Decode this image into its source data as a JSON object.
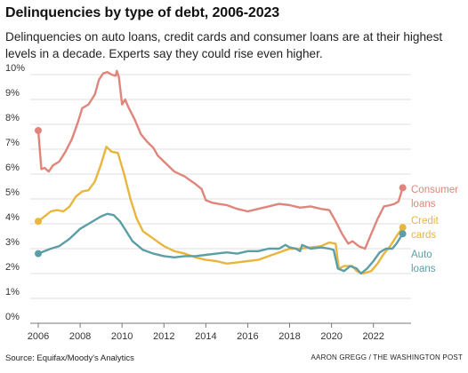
{
  "header": {
    "title": "Delinquencies by type of debt, 2006-2023",
    "subtitle": "Delinquencies on auto loans, credit cards and consumer loans are at their highest levels in a decade. Experts say they could rise even higher."
  },
  "footer": {
    "source": "Source: Equifax/Moody's Analytics",
    "credit": "AARON GREGG / THE WASHINGTON POST"
  },
  "chart_data": {
    "type": "line",
    "title": "Delinquencies by type of debt, 2006-2023",
    "xlabel": "",
    "ylabel": "",
    "xlim": [
      2006,
      2023.5
    ],
    "ylim": [
      0,
      10
    ],
    "x_ticks": [
      "2006",
      "2008",
      "2010",
      "2012",
      "2014",
      "2016",
      "2018",
      "2020",
      "2022"
    ],
    "y_ticks": [
      "0%",
      "1%",
      "2%",
      "3%",
      "4%",
      "5%",
      "6%",
      "7%",
      "8%",
      "9%",
      "10%"
    ],
    "grid": true,
    "legend": "direct labels at right end of lines",
    "series": [
      {
        "name": "Consumer loans",
        "label_lines": [
          "Consumer",
          "loans"
        ],
        "color": "#e0857b",
        "points": [
          [
            2006.0,
            7.75
          ],
          [
            2006.15,
            6.2
          ],
          [
            2006.3,
            6.25
          ],
          [
            2006.5,
            6.1
          ],
          [
            2006.7,
            6.35
          ],
          [
            2007.0,
            6.5
          ],
          [
            2007.3,
            6.9
          ],
          [
            2007.6,
            7.4
          ],
          [
            2007.9,
            8.1
          ],
          [
            2008.1,
            8.65
          ],
          [
            2008.4,
            8.8
          ],
          [
            2008.7,
            9.2
          ],
          [
            2008.9,
            9.8
          ],
          [
            2009.1,
            10.05
          ],
          [
            2009.3,
            10.1
          ],
          [
            2009.5,
            10.0
          ],
          [
            2009.7,
            9.95
          ],
          [
            2009.75,
            10.15
          ],
          [
            2009.85,
            9.9
          ],
          [
            2010.0,
            8.8
          ],
          [
            2010.15,
            9.0
          ],
          [
            2010.3,
            8.7
          ],
          [
            2010.6,
            8.2
          ],
          [
            2010.9,
            7.6
          ],
          [
            2011.2,
            7.3
          ],
          [
            2011.5,
            7.05
          ],
          [
            2011.7,
            6.75
          ],
          [
            2012.0,
            6.5
          ],
          [
            2012.5,
            6.1
          ],
          [
            2013.0,
            5.9
          ],
          [
            2013.5,
            5.6
          ],
          [
            2013.8,
            5.4
          ],
          [
            2014.0,
            4.95
          ],
          [
            2014.3,
            4.85
          ],
          [
            2014.6,
            4.8
          ],
          [
            2015.0,
            4.75
          ],
          [
            2015.5,
            4.6
          ],
          [
            2016.0,
            4.5
          ],
          [
            2016.5,
            4.6
          ],
          [
            2017.0,
            4.7
          ],
          [
            2017.5,
            4.8
          ],
          [
            2018.0,
            4.75
          ],
          [
            2018.5,
            4.65
          ],
          [
            2019.0,
            4.7
          ],
          [
            2019.5,
            4.6
          ],
          [
            2019.9,
            4.55
          ],
          [
            2020.2,
            4.1
          ],
          [
            2020.5,
            3.6
          ],
          [
            2020.8,
            3.2
          ],
          [
            2021.0,
            3.3
          ],
          [
            2021.3,
            3.1
          ],
          [
            2021.6,
            3.0
          ],
          [
            2021.9,
            3.6
          ],
          [
            2022.2,
            4.2
          ],
          [
            2022.5,
            4.7
          ],
          [
            2022.8,
            4.75
          ],
          [
            2023.0,
            4.8
          ],
          [
            2023.2,
            4.9
          ],
          [
            2023.4,
            5.45
          ]
        ]
      },
      {
        "name": "Credit cards",
        "label_lines": [
          "Credit",
          "cards"
        ],
        "color": "#e8b53e",
        "points": [
          [
            2006.0,
            4.1
          ],
          [
            2006.3,
            4.3
          ],
          [
            2006.6,
            4.5
          ],
          [
            2006.9,
            4.55
          ],
          [
            2007.2,
            4.5
          ],
          [
            2007.5,
            4.7
          ],
          [
            2007.8,
            5.1
          ],
          [
            2008.1,
            5.3
          ],
          [
            2008.4,
            5.35
          ],
          [
            2008.7,
            5.7
          ],
          [
            2009.0,
            6.4
          ],
          [
            2009.25,
            7.1
          ],
          [
            2009.5,
            6.9
          ],
          [
            2009.8,
            6.85
          ],
          [
            2010.1,
            6.0
          ],
          [
            2010.4,
            5.0
          ],
          [
            2010.7,
            4.2
          ],
          [
            2011.0,
            3.7
          ],
          [
            2011.5,
            3.4
          ],
          [
            2012.0,
            3.1
          ],
          [
            2012.5,
            2.9
          ],
          [
            2013.0,
            2.8
          ],
          [
            2013.5,
            2.65
          ],
          [
            2014.0,
            2.55
          ],
          [
            2014.5,
            2.5
          ],
          [
            2015.0,
            2.4
          ],
          [
            2015.5,
            2.45
          ],
          [
            2016.0,
            2.5
          ],
          [
            2016.5,
            2.55
          ],
          [
            2017.0,
            2.7
          ],
          [
            2017.5,
            2.85
          ],
          [
            2018.0,
            3.0
          ],
          [
            2018.5,
            3.0
          ],
          [
            2019.0,
            3.05
          ],
          [
            2019.5,
            3.1
          ],
          [
            2019.9,
            3.25
          ],
          [
            2020.2,
            3.2
          ],
          [
            2020.35,
            2.2
          ],
          [
            2020.6,
            2.3
          ],
          [
            2021.0,
            2.3
          ],
          [
            2021.2,
            2.1
          ],
          [
            2021.5,
            2.0
          ],
          [
            2021.9,
            2.1
          ],
          [
            2022.2,
            2.4
          ],
          [
            2022.5,
            2.8
          ],
          [
            2022.8,
            3.1
          ],
          [
            2023.1,
            3.5
          ],
          [
            2023.4,
            3.85
          ]
        ]
      },
      {
        "name": "Auto loans",
        "label_lines": [
          "Auto",
          "loans"
        ],
        "color": "#5b9ea6",
        "points": [
          [
            2006.0,
            2.8
          ],
          [
            2006.3,
            2.9
          ],
          [
            2006.6,
            3.0
          ],
          [
            2007.0,
            3.1
          ],
          [
            2007.5,
            3.4
          ],
          [
            2008.0,
            3.8
          ],
          [
            2008.5,
            4.05
          ],
          [
            2009.0,
            4.3
          ],
          [
            2009.3,
            4.4
          ],
          [
            2009.6,
            4.35
          ],
          [
            2009.9,
            4.1
          ],
          [
            2010.2,
            3.7
          ],
          [
            2010.5,
            3.3
          ],
          [
            2011.0,
            2.95
          ],
          [
            2011.5,
            2.8
          ],
          [
            2012.0,
            2.7
          ],
          [
            2012.5,
            2.65
          ],
          [
            2013.0,
            2.7
          ],
          [
            2013.5,
            2.7
          ],
          [
            2014.0,
            2.75
          ],
          [
            2014.5,
            2.8
          ],
          [
            2015.0,
            2.85
          ],
          [
            2015.5,
            2.8
          ],
          [
            2016.0,
            2.9
          ],
          [
            2016.5,
            2.9
          ],
          [
            2017.0,
            3.0
          ],
          [
            2017.5,
            3.0
          ],
          [
            2017.8,
            3.15
          ],
          [
            2018.0,
            3.05
          ],
          [
            2018.3,
            3.0
          ],
          [
            2018.5,
            2.9
          ],
          [
            2018.6,
            3.15
          ],
          [
            2019.0,
            3.0
          ],
          [
            2019.5,
            3.05
          ],
          [
            2019.9,
            3.0
          ],
          [
            2020.1,
            2.95
          ],
          [
            2020.3,
            2.2
          ],
          [
            2020.6,
            2.1
          ],
          [
            2020.9,
            2.3
          ],
          [
            2021.2,
            2.2
          ],
          [
            2021.4,
            2.0
          ],
          [
            2021.7,
            2.2
          ],
          [
            2022.0,
            2.5
          ],
          [
            2022.3,
            2.85
          ],
          [
            2022.6,
            3.0
          ],
          [
            2022.9,
            3.0
          ],
          [
            2023.1,
            3.2
          ],
          [
            2023.4,
            3.6
          ]
        ]
      }
    ]
  }
}
